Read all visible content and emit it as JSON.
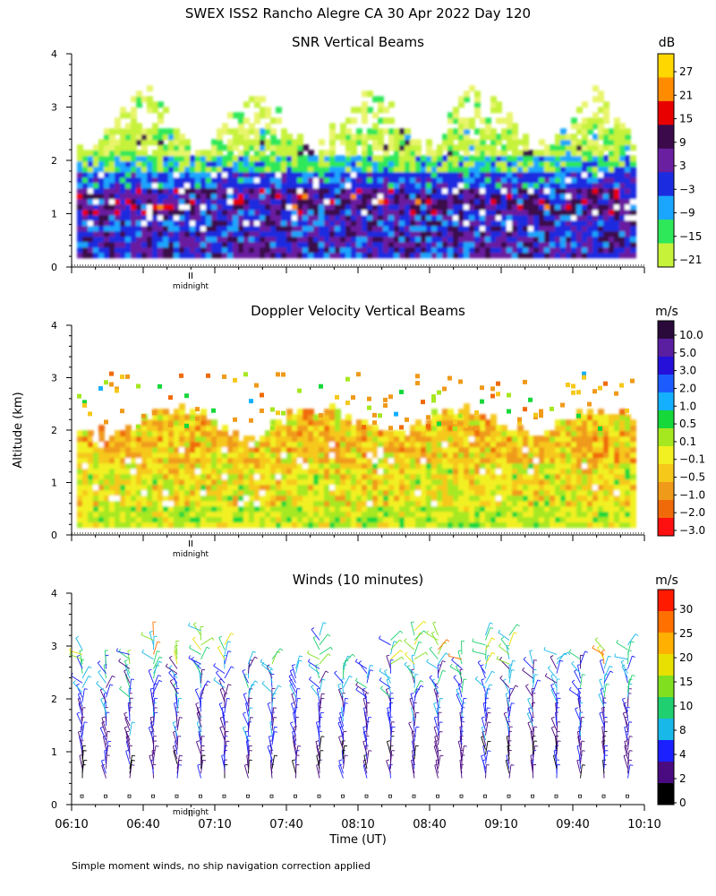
{
  "title": "SWEX ISS2 Rancho Alegre CA  30 Apr 2022 Day 120",
  "y_axis_label": "Altitude (km)",
  "x_axis_label": "Time (UT)",
  "footnote": "Simple moment winds, no ship navigation correction applied",
  "midnight_label": "midnight",
  "time_ticks": [
    "06:10",
    "06:40",
    "07:10",
    "07:40",
    "08:10",
    "08:40",
    "09:10",
    "09:40",
    "10:10"
  ],
  "altitude_ticks": [
    "0",
    "1",
    "2",
    "3",
    "4"
  ],
  "chart_data": [
    {
      "type": "heatmap",
      "title": "SNR Vertical Beams",
      "units": "dB",
      "xlabel": "",
      "ylabel": "Altitude (km)",
      "ylim": [
        0,
        4
      ],
      "x_range": [
        "06:10",
        "10:10"
      ],
      "colorbar_ticks": [
        "27",
        "21",
        "15",
        "9",
        "3",
        "−3",
        "−9",
        "−15",
        "−21"
      ],
      "colorbar_colors": [
        "#ffd700",
        "#ff8c00",
        "#e80000",
        "#3a0a4a",
        "#6a1fa0",
        "#1b2ce0",
        "#1aa6ff",
        "#2ee85a",
        "#c6f23a"
      ],
      "structure": "strong returns (purple/red) 0.2-1.4 km, blue to 1.8 km, green/yellow fringe up to ~3.1 km"
    },
    {
      "type": "heatmap",
      "title": "Doppler Velocity Vertical Beams",
      "units": "m/s",
      "xlabel": "",
      "ylabel": "Altitude (km)",
      "ylim": [
        0,
        4
      ],
      "x_range": [
        "06:10",
        "10:10"
      ],
      "colorbar_ticks": [
        "10.0",
        "5.0",
        "3.0",
        "2.0",
        "1.0",
        "0.5",
        "0.1",
        "−0.1",
        "−0.5",
        "−1.0",
        "−2.0",
        "−3.0"
      ],
      "colorbar_colors": [
        "#2a0a3a",
        "#5a1ea0",
        "#2410d8",
        "#1c5cff",
        "#14b0ff",
        "#16d83a",
        "#a6e820",
        "#f2f020",
        "#f6c81a",
        "#f09a1a",
        "#f06a0a",
        "#ff1010"
      ],
      "structure": "mostly yellow/green (~0 m/s) from 0.2-1.8 km with orange patches, sparse returns up to ~3 km"
    },
    {
      "type": "wind_barbs",
      "title": "Winds (10 minutes)",
      "units": "m/s",
      "xlabel": "Time (UT)",
      "ylabel": "Altitude (km)",
      "ylim": [
        0,
        4
      ],
      "x_range": [
        "06:10",
        "10:10"
      ],
      "columns": 24,
      "colorbar_ticks": [
        "30",
        "25",
        "20",
        "15",
        "10",
        "8",
        "4",
        "2",
        "0"
      ],
      "colorbar_colors": [
        "#ff1a00",
        "#ff7000",
        "#ffb000",
        "#e8e000",
        "#80e020",
        "#20d070",
        "#18b8e8",
        "#1a20ff",
        "#4a0a80",
        "#000000"
      ],
      "structure": "mostly 2-8 m/s (blue/purple) below 2 km, 10-20 m/s (cyan/green/orange) above 2 km"
    }
  ]
}
